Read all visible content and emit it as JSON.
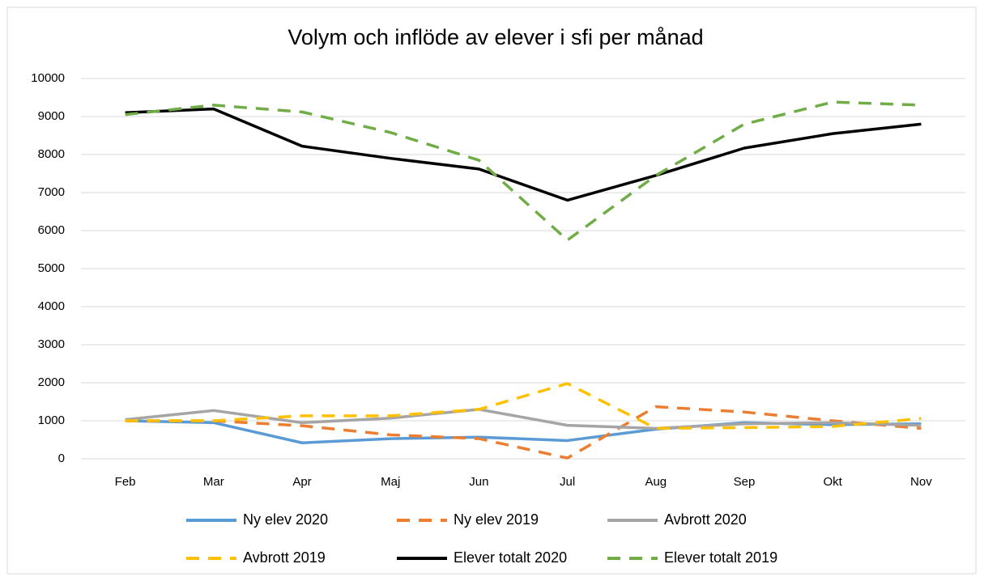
{
  "chart_data": {
    "type": "line",
    "title": "Volym och inflöde av elever i sfi per månad",
    "categories": [
      "Feb",
      "Mar",
      "Apr",
      "Maj",
      "Jun",
      "Jul",
      "Aug",
      "Sep",
      "Okt",
      "Nov"
    ],
    "ylim": [
      0,
      10000
    ],
    "yticks": [
      0,
      1000,
      2000,
      3000,
      4000,
      5000,
      6000,
      7000,
      8000,
      9000,
      10000
    ],
    "grid": true,
    "legend": "bottom",
    "series": [
      {
        "name": "Ny elev 2020",
        "color": "#5b9bd5",
        "dashed": false,
        "values": [
          1000,
          950,
          420,
          530,
          570,
          480,
          780,
          950,
          900,
          920
        ]
      },
      {
        "name": "Ny elev 2019",
        "color": "#ed7d31",
        "dashed": true,
        "values": [
          1000,
          1000,
          870,
          630,
          530,
          20,
          1370,
          1230,
          1000,
          800
        ]
      },
      {
        "name": "Avbrott 2020",
        "color": "#a5a5a5",
        "dashed": false,
        "values": [
          1030,
          1270,
          950,
          1070,
          1300,
          880,
          800,
          920,
          950,
          880
        ]
      },
      {
        "name": "Avbrott 2019",
        "color": "#ffc000",
        "dashed": true,
        "values": [
          1000,
          1000,
          1130,
          1130,
          1300,
          1980,
          800,
          820,
          850,
          1060
        ]
      },
      {
        "name": "Elever totalt 2020",
        "color": "#000000",
        "dashed": false,
        "values": [
          9100,
          9200,
          8220,
          7900,
          7620,
          6800,
          7450,
          8170,
          8550,
          8800
        ]
      },
      {
        "name": "Elever totalt 2019",
        "color": "#70ad47",
        "dashed": true,
        "values": [
          9050,
          9300,
          9120,
          8580,
          7850,
          5750,
          7450,
          8800,
          9380,
          9300
        ]
      }
    ]
  }
}
